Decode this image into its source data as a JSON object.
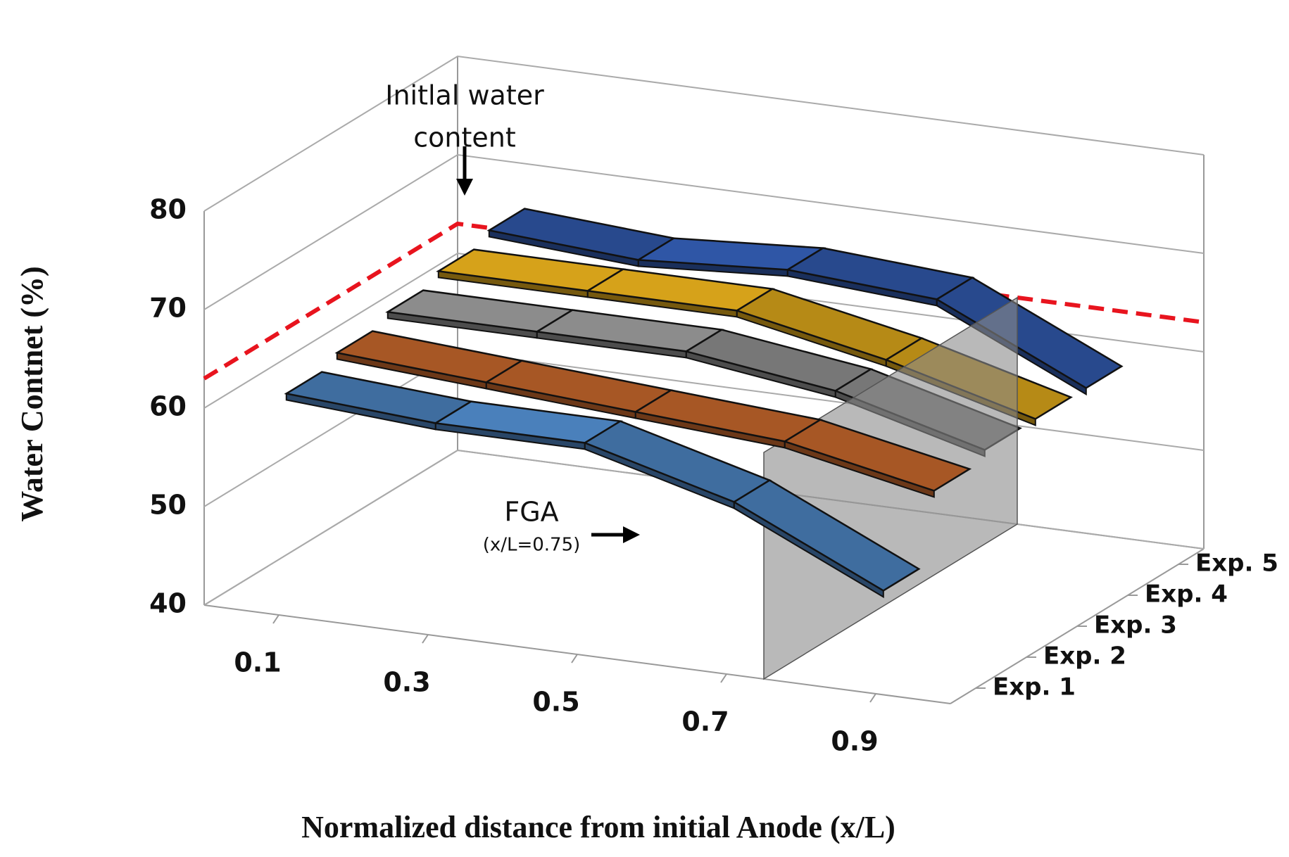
{
  "chart_data": {
    "type": "ribbon3d",
    "x_label": "Normalized distance from initial Anode (x/L)",
    "y_label": "Water Contnet (%)",
    "x": [
      0.1,
      0.3,
      0.5,
      0.7,
      0.9
    ],
    "xlim": [
      0,
      1
    ],
    "ylim": [
      40,
      80
    ],
    "yticks": [
      40,
      50,
      60,
      70,
      80
    ],
    "series": [
      {
        "name": "Exp. 1",
        "color": "#4a80bb",
        "values": [
          62,
          61,
          61,
          57,
          50
        ]
      },
      {
        "name": "Exp. 2",
        "color": "#c4662c",
        "values": [
          63,
          62,
          61,
          60,
          57
        ]
      },
      {
        "name": "Exp. 3",
        "color": "#8c8c8c",
        "values": [
          64,
          64,
          64,
          62,
          58
        ]
      },
      {
        "name": "Exp. 4",
        "color": "#d6a21a",
        "values": [
          65,
          65,
          65,
          62,
          58
        ]
      },
      {
        "name": "Exp. 5",
        "color": "#2f56a6",
        "values": [
          66,
          65,
          66,
          65,
          58
        ]
      }
    ],
    "initial_water_content": 63,
    "initial_annotation": [
      "Initlal water",
      "content"
    ],
    "fga": 0.75,
    "fga_annotation": [
      "FGA",
      "(x/L=0.75)"
    ],
    "grid": true
  }
}
